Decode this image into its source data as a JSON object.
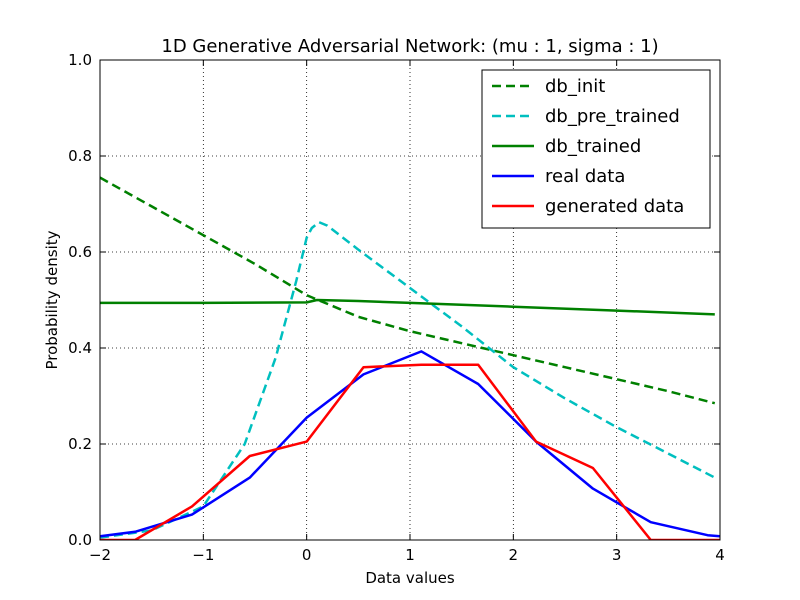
{
  "chart_data": {
    "type": "line",
    "title": "1D Generative Adversarial Network: (mu :   1, sigma :   1)",
    "xlabel": "Data values",
    "ylabel": "Probability density",
    "xlim": [
      -2,
      4
    ],
    "ylim": [
      0,
      1.0
    ],
    "xticks": [
      -2,
      -1,
      0,
      1,
      2,
      3,
      4
    ],
    "xtick_labels": [
      "−2",
      "−1",
      "0",
      "1",
      "2",
      "3",
      "4"
    ],
    "yticks": [
      0,
      0.2,
      0.4,
      0.6,
      0.8,
      1.0
    ],
    "ytick_labels": [
      "0.0",
      "0.2",
      "0.4",
      "0.6",
      "0.8",
      "1.0"
    ],
    "grid": true,
    "legend_position": "top-right",
    "series": [
      {
        "name": "db_init",
        "color": "#008000",
        "style": "dashed",
        "x": [
          -2.0,
          -1.5,
          -1.0,
          -0.5,
          0.0,
          0.5,
          1.0,
          1.5,
          2.0,
          2.5,
          3.0,
          3.5,
          3.95
        ],
        "y": [
          0.755,
          0.695,
          0.635,
          0.575,
          0.51,
          0.465,
          0.435,
          0.41,
          0.385,
          0.36,
          0.335,
          0.31,
          0.285
        ]
      },
      {
        "name": "db_pre_trained",
        "color": "#00bfbf",
        "style": "dashed",
        "x": [
          -2.0,
          -1.5,
          -1.0,
          -0.6,
          -0.3,
          -0.1,
          0.0,
          0.05,
          0.12,
          0.2,
          0.5,
          1.0,
          1.5,
          2.0,
          2.5,
          3.0,
          3.5,
          3.95
        ],
        "y": [
          0.005,
          0.02,
          0.07,
          0.2,
          0.38,
          0.54,
          0.63,
          0.65,
          0.662,
          0.655,
          0.605,
          0.525,
          0.445,
          0.36,
          0.295,
          0.235,
          0.18,
          0.13
        ]
      },
      {
        "name": "db_trained",
        "color": "#008000",
        "style": "solid",
        "x": [
          -2.0,
          -1.0,
          0.0,
          0.1,
          0.5,
          1.0,
          2.0,
          3.0,
          3.95
        ],
        "y": [
          0.494,
          0.494,
          0.495,
          0.5,
          0.498,
          0.494,
          0.486,
          0.478,
          0.47
        ]
      },
      {
        "name": "real data",
        "color": "#0000ff",
        "style": "solid",
        "x": [
          -2.0,
          -1.66,
          -1.11,
          -0.55,
          0.0,
          0.55,
          1.11,
          1.66,
          2.22,
          2.77,
          3.33,
          3.88,
          4.0
        ],
        "y": [
          0.008,
          0.017,
          0.053,
          0.13,
          0.255,
          0.345,
          0.393,
          0.325,
          0.205,
          0.107,
          0.037,
          0.01,
          0.008
        ]
      },
      {
        "name": "generated data",
        "color": "#ff0000",
        "style": "solid",
        "x": [
          -2.0,
          -1.66,
          -1.11,
          -0.55,
          0.0,
          0.55,
          1.11,
          1.66,
          2.22,
          2.77,
          3.33,
          3.88,
          4.0
        ],
        "y": [
          0.0,
          0.0,
          0.07,
          0.175,
          0.205,
          0.36,
          0.365,
          0.365,
          0.205,
          0.15,
          0.0,
          0.0,
          0.0
        ]
      }
    ]
  }
}
